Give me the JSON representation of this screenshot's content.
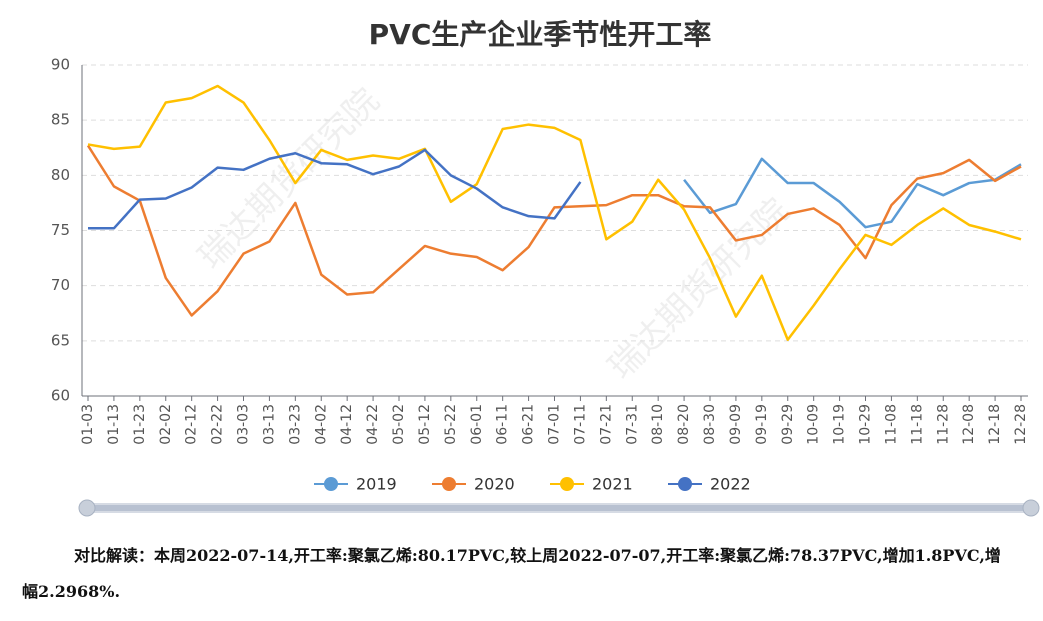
{
  "chart_data": {
    "type": "line",
    "title": "PVC生产企业季节性开工率",
    "watermark": "瑞达期货研究院",
    "categories": [
      "01-03",
      "01-13",
      "01-23",
      "02-02",
      "02-12",
      "02-22",
      "03-03",
      "03-13",
      "03-23",
      "04-02",
      "04-12",
      "04-22",
      "05-02",
      "05-12",
      "05-22",
      "06-01",
      "06-11",
      "06-21",
      "07-01",
      "07-11",
      "07-21",
      "07-31",
      "08-10",
      "08-20",
      "08-30",
      "09-09",
      "09-19",
      "09-29",
      "10-09",
      "10-19",
      "10-29",
      "11-08",
      "11-18",
      "11-28",
      "12-08",
      "12-18",
      "12-28"
    ],
    "series": [
      {
        "name": "2019",
        "color": "#5b9bd5",
        "values": [
          null,
          null,
          null,
          null,
          null,
          null,
          null,
          null,
          null,
          null,
          null,
          null,
          null,
          null,
          null,
          null,
          null,
          null,
          null,
          null,
          null,
          null,
          null,
          79.6,
          76.6,
          77.4,
          81.5,
          79.3,
          79.3,
          77.6,
          75.3,
          75.8,
          79.2,
          78.2,
          79.3,
          79.6,
          81
        ]
      },
      {
        "name": "2020",
        "color": "#ed7d31",
        "values": [
          82.7,
          79,
          77.7,
          70.7,
          67.3,
          69.5,
          72.9,
          74,
          77.5,
          71,
          69.2,
          69.4,
          71.5,
          73.6,
          72.9,
          72.6,
          71.4,
          73.5,
          77.1,
          77.2,
          77.3,
          78.2,
          78.2,
          77.2,
          77.1,
          74.1,
          74.6,
          76.5,
          77,
          75.5,
          72.5,
          77.3,
          79.7,
          80.2,
          81.4,
          79.5,
          80.8
        ]
      },
      {
        "name": "2021",
        "color": "#ffc000",
        "values": [
          82.8,
          82.4,
          82.6,
          86.6,
          87,
          88.1,
          86.6,
          83.2,
          79.3,
          82.3,
          81.4,
          81.8,
          81.5,
          82.4,
          77.6,
          79.2,
          84.2,
          84.6,
          84.3,
          83.2,
          74.2,
          75.8,
          79.6,
          76.9,
          72.5,
          67.2,
          70.9,
          65.1,
          68.2,
          71.5,
          74.6,
          73.7,
          75.5,
          77,
          75.5,
          74.9,
          74.2
        ]
      },
      {
        "name": "2022",
        "color": "#4472c4",
        "values": [
          75.2,
          75.2,
          77.8,
          77.9,
          78.9,
          80.7,
          80.5,
          81.5,
          82,
          81.1,
          81,
          80.1,
          80.8,
          82.3,
          80,
          78.8,
          77.1,
          76.3,
          76.1,
          79.4,
          null,
          null,
          null,
          null,
          null,
          null,
          null,
          null,
          null,
          null,
          null,
          null,
          null,
          null,
          null,
          null,
          null
        ]
      }
    ],
    "ylim": [
      60,
      90
    ],
    "yticks": [
      60,
      65,
      70,
      75,
      80,
      85,
      90
    ],
    "grid": true,
    "legend": "bottom",
    "note": "对比解读：本周2022-07-14,开工率:聚氯乙烯:80.17PVC,较上周2022-07-07,开工率:聚氯乙烯:78.37PVC,增加1.8PVC,增幅2.2968%."
  }
}
